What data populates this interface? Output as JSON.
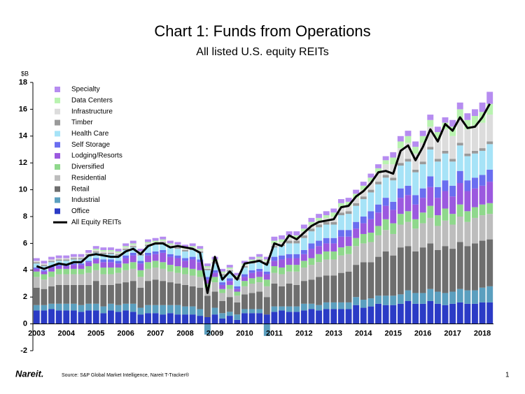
{
  "chart_data": {
    "type": "bar",
    "stacked": true,
    "title": "Chart 1: Funds from Operations",
    "subtitle": "All listed U.S. equity REITs",
    "y_label": "$B",
    "source": "Source: S&P Global Market Intelligence, Nareit T-Tracker®",
    "logo": "Nareit.",
    "page_number": "1",
    "legend": "upper left",
    "grid": false,
    "ylim": [
      -2,
      18
    ],
    "yticks": [
      -2,
      0,
      2,
      4,
      6,
      8,
      10,
      12,
      14,
      16,
      18
    ],
    "categories": [
      "2003",
      null,
      null,
      null,
      "2004",
      null,
      null,
      null,
      "2005",
      null,
      null,
      null,
      "2006",
      null,
      null,
      null,
      "2007",
      null,
      null,
      null,
      "2008",
      null,
      null,
      null,
      "2009",
      null,
      null,
      null,
      "2010",
      null,
      null,
      null,
      "2011",
      null,
      null,
      null,
      "2012",
      null,
      null,
      null,
      "2013",
      null,
      null,
      null,
      "2014",
      null,
      null,
      null,
      "2015",
      null,
      null,
      null,
      "2016",
      null,
      null,
      null,
      "2017",
      null,
      null,
      null,
      "2018",
      null
    ],
    "series": [
      {
        "name": "Office",
        "color": "#2b3bc6",
        "values": [
          1.0,
          1.0,
          1.1,
          1.0,
          1.0,
          1.0,
          0.9,
          1.0,
          1.0,
          0.8,
          1.0,
          0.9,
          1.0,
          0.9,
          0.7,
          0.8,
          0.8,
          0.7,
          0.8,
          0.7,
          0.7,
          0.7,
          0.6,
          0.5,
          0.7,
          0.4,
          0.6,
          0.3,
          0.8,
          0.8,
          0.8,
          0.7,
          0.9,
          1.0,
          0.9,
          0.9,
          1.0,
          1.1,
          1.0,
          1.1,
          1.1,
          1.1,
          1.1,
          1.4,
          1.2,
          1.3,
          1.5,
          1.4,
          1.4,
          1.5,
          1.7,
          1.5,
          1.5,
          1.7,
          1.5,
          1.4,
          1.5,
          1.6,
          1.5,
          1.5,
          1.6,
          1.6
        ]
      },
      {
        "name": "Industrial",
        "color": "#5b9fbf",
        "values": [
          0.4,
          0.4,
          0.4,
          0.5,
          0.5,
          0.5,
          0.5,
          0.5,
          0.5,
          0.5,
          0.5,
          0.5,
          0.5,
          0.6,
          0.5,
          0.6,
          0.6,
          0.7,
          0.6,
          0.7,
          0.6,
          0.6,
          0.5,
          -0.8,
          0.5,
          0.4,
          0.3,
          0.4,
          0.3,
          0.3,
          0.3,
          -0.9,
          0.4,
          0.3,
          0.4,
          0.4,
          0.5,
          0.4,
          0.4,
          0.5,
          0.5,
          0.5,
          0.5,
          0.6,
          0.6,
          0.6,
          0.6,
          0.7,
          0.7,
          0.7,
          0.8,
          0.8,
          0.8,
          0.9,
          0.9,
          0.9,
          0.9,
          1.0,
          1.0,
          1.0,
          1.1,
          1.2
        ]
      },
      {
        "name": "Retail",
        "color": "#6e6e6e",
        "values": [
          1.3,
          1.2,
          1.3,
          1.4,
          1.4,
          1.4,
          1.5,
          1.4,
          1.7,
          1.6,
          1.4,
          1.6,
          1.6,
          1.7,
          1.5,
          1.8,
          1.9,
          1.8,
          1.7,
          1.6,
          1.6,
          1.5,
          1.6,
          1.6,
          1.2,
          0.9,
          1.1,
          0.9,
          1.1,
          1.2,
          1.3,
          1.3,
          1.7,
          1.5,
          1.7,
          1.6,
          1.7,
          1.8,
          2.1,
          2.0,
          2.0,
          2.2,
          2.3,
          2.4,
          2.8,
          2.7,
          2.9,
          3.3,
          3.0,
          3.5,
          3.3,
          3.1,
          3.4,
          3.4,
          3.1,
          3.5,
          3.2,
          3.5,
          3.3,
          3.5,
          3.5,
          3.5
        ]
      },
      {
        "name": "Residential",
        "color": "#bdbdbd",
        "values": [
          0.8,
          0.7,
          0.7,
          0.8,
          0.8,
          0.8,
          0.8,
          0.9,
          0.8,
          0.8,
          0.8,
          0.8,
          0.9,
          0.9,
          0.8,
          0.9,
          0.9,
          0.9,
          0.8,
          0.8,
          0.8,
          0.8,
          0.8,
          0.6,
          0.7,
          0.6,
          0.6,
          0.5,
          0.6,
          0.7,
          0.7,
          0.8,
          0.8,
          0.9,
          0.9,
          1.0,
          1.0,
          1.1,
          1.1,
          1.2,
          1.2,
          1.3,
          1.3,
          1.4,
          1.4,
          1.5,
          1.6,
          1.6,
          1.6,
          1.7,
          1.8,
          1.7,
          1.8,
          1.9,
          1.8,
          1.9,
          1.8,
          1.9,
          1.8,
          1.9,
          1.9,
          1.9
        ]
      },
      {
        "name": "Diversified",
        "color": "#8fd88c",
        "values": [
          0.4,
          0.4,
          0.4,
          0.4,
          0.4,
          0.4,
          0.4,
          0.5,
          0.5,
          0.5,
          0.5,
          0.4,
          0.5,
          0.5,
          0.5,
          0.5,
          0.5,
          0.5,
          0.5,
          0.5,
          0.5,
          0.5,
          0.5,
          0.3,
          0.4,
          0.3,
          0.3,
          0.3,
          0.4,
          0.4,
          0.4,
          0.5,
          0.5,
          0.5,
          0.5,
          0.5,
          0.5,
          0.5,
          0.6,
          0.6,
          0.6,
          0.6,
          0.6,
          0.6,
          0.7,
          0.7,
          0.7,
          0.8,
          0.8,
          0.8,
          0.8,
          0.7,
          0.8,
          0.9,
          0.8,
          0.9,
          0.8,
          0.9,
          0.8,
          0.8,
          0.8,
          0.8
        ]
      },
      {
        "name": "Lodging/Resorts",
        "color": "#9b59df",
        "values": [
          0.2,
          0.2,
          0.3,
          0.2,
          0.2,
          0.3,
          0.3,
          0.3,
          0.3,
          0.4,
          0.4,
          0.3,
          0.4,
          0.5,
          0.5,
          0.5,
          0.5,
          0.7,
          0.6,
          0.6,
          0.5,
          0.7,
          0.6,
          0.3,
          0.3,
          0.3,
          0.3,
          0.2,
          0.3,
          0.4,
          0.4,
          0.4,
          0.4,
          0.6,
          0.5,
          0.5,
          0.5,
          0.7,
          0.6,
          0.6,
          0.6,
          0.8,
          0.7,
          0.7,
          0.8,
          1.0,
          1.0,
          1.0,
          1.0,
          1.2,
          1.2,
          1.1,
          1.1,
          1.4,
          1.3,
          1.3,
          1.3,
          1.6,
          1.5,
          1.4,
          1.4,
          1.6
        ]
      },
      {
        "name": "Self Storage",
        "color": "#6a6ef0",
        "values": [
          0.1,
          0.1,
          0.1,
          0.1,
          0.1,
          0.1,
          0.1,
          0.1,
          0.1,
          0.2,
          0.2,
          0.2,
          0.2,
          0.2,
          0.2,
          0.2,
          0.2,
          0.2,
          0.2,
          0.2,
          0.2,
          0.2,
          0.2,
          0.2,
          0.2,
          0.2,
          0.2,
          0.2,
          0.2,
          0.2,
          0.2,
          0.2,
          0.3,
          0.3,
          0.3,
          0.3,
          0.3,
          0.4,
          0.4,
          0.4,
          0.4,
          0.5,
          0.5,
          0.5,
          0.5,
          0.6,
          0.6,
          0.6,
          0.6,
          0.7,
          0.7,
          0.7,
          0.7,
          0.8,
          0.8,
          0.8,
          0.8,
          0.9,
          0.8,
          0.8,
          0.8,
          0.9
        ]
      },
      {
        "name": "Health Care",
        "color": "#a6e3f7",
        "values": [
          0.3,
          0.3,
          0.3,
          0.3,
          0.3,
          0.3,
          0.3,
          0.4,
          0.4,
          0.4,
          0.4,
          0.4,
          0.4,
          0.4,
          0.4,
          0.5,
          0.5,
          0.5,
          0.5,
          0.5,
          0.5,
          0.5,
          0.5,
          0.5,
          0.5,
          0.5,
          0.5,
          0.5,
          0.5,
          0.5,
          0.6,
          0.6,
          0.7,
          0.7,
          0.8,
          0.8,
          0.9,
          0.9,
          1.0,
          1.0,
          1.0,
          1.1,
          1.2,
          1.2,
          1.3,
          1.4,
          1.5,
          1.5,
          1.6,
          1.7,
          1.8,
          1.7,
          1.8,
          2.0,
          1.9,
          2.0,
          1.8,
          1.9,
          1.8,
          1.8,
          1.8,
          1.9
        ]
      },
      {
        "name": "Timber",
        "color": "#9a9a9a",
        "values": [
          0.1,
          0.1,
          0.1,
          0.1,
          0.1,
          0.1,
          0.1,
          0.1,
          0.1,
          0.1,
          0.1,
          0.1,
          0.1,
          0.1,
          0.1,
          0.1,
          0.1,
          0.1,
          0.1,
          0.1,
          0.1,
          0.1,
          0.1,
          0.1,
          0.1,
          0.1,
          0.1,
          0.1,
          0.1,
          0.1,
          0.1,
          0.1,
          0.1,
          0.1,
          0.2,
          0.2,
          0.2,
          0.2,
          0.2,
          0.2,
          0.2,
          0.2,
          0.2,
          0.2,
          0.2,
          0.2,
          0.2,
          0.2,
          0.2,
          0.2,
          0.2,
          0.2,
          0.2,
          0.2,
          0.2,
          0.2,
          0.2,
          0.2,
          0.2,
          0.2,
          0.2,
          0.2
        ]
      },
      {
        "name": "Infrastructure",
        "color": "#dcdcdc",
        "values": [
          0.1,
          0.1,
          0.1,
          0.1,
          0.1,
          0.1,
          0.1,
          0.1,
          0.1,
          0.1,
          0.1,
          0.1,
          0.1,
          0.1,
          0.1,
          0.1,
          0.1,
          0.1,
          0.1,
          0.1,
          0.1,
          0.1,
          0.1,
          0.1,
          0.1,
          0.1,
          0.1,
          0.1,
          0.1,
          0.1,
          0.1,
          0.1,
          0.2,
          0.2,
          0.2,
          0.2,
          0.3,
          0.3,
          0.3,
          0.3,
          0.4,
          0.4,
          0.4,
          0.4,
          0.5,
          0.6,
          0.7,
          0.8,
          1.0,
          1.1,
          1.2,
          1.2,
          1.4,
          1.5,
          1.5,
          1.6,
          1.7,
          1.8,
          1.8,
          1.9,
          1.9,
          2.0
        ]
      },
      {
        "name": "Data Centers",
        "color": "#b9f3b0",
        "values": [
          0,
          0,
          0,
          0,
          0,
          0,
          0,
          0,
          0.1,
          0.1,
          0.1,
          0.1,
          0.1,
          0.1,
          0.1,
          0.1,
          0.1,
          0.1,
          0.1,
          0.1,
          0.1,
          0.1,
          0.1,
          0.1,
          0.1,
          0.1,
          0.1,
          0.1,
          0.1,
          0.1,
          0.1,
          0.1,
          0.2,
          0.2,
          0.2,
          0.2,
          0.2,
          0.2,
          0.2,
          0.2,
          0.3,
          0.3,
          0.3,
          0.3,
          0.3,
          0.3,
          0.3,
          0.3,
          0.5,
          0.5,
          0.5,
          0.5,
          0.5,
          0.5,
          0.5,
          0.5,
          0.7,
          0.7,
          0.7,
          0.7,
          0.8,
          0.8
        ]
      },
      {
        "name": "Specialty",
        "color": "#b68cf0",
        "values": [
          0.2,
          0.2,
          0.2,
          0.2,
          0.2,
          0.2,
          0.2,
          0.2,
          0.2,
          0.2,
          0.2,
          0.2,
          0.2,
          0.2,
          0.2,
          0.2,
          0.2,
          0.2,
          0.2,
          0.2,
          0.2,
          0.2,
          0.2,
          0.2,
          0.2,
          0.2,
          0.2,
          0.2,
          0.2,
          0.2,
          0.2,
          0.2,
          0.3,
          0.3,
          0.3,
          0.3,
          0.3,
          0.3,
          0.3,
          0.3,
          0.3,
          0.3,
          0.3,
          0.3,
          0.3,
          0.3,
          0.3,
          0.3,
          0.4,
          0.4,
          0.4,
          0.4,
          0.4,
          0.4,
          0.4,
          0.4,
          0.5,
          0.5,
          0.5,
          0.5,
          0.7,
          0.9
        ]
      }
    ],
    "line": {
      "name": "All Equity REITs",
      "color": "#000000",
      "values": [
        4.3,
        4.1,
        4.3,
        4.5,
        4.4,
        4.6,
        4.6,
        5.1,
        5.2,
        5.1,
        5.0,
        5.0,
        5.4,
        5.6,
        5.2,
        5.8,
        6.0,
        6.0,
        5.7,
        5.8,
        5.7,
        5.6,
        5.3,
        2.3,
        5.0,
        3.3,
        3.9,
        3.3,
        4.5,
        4.6,
        4.7,
        4.4,
        6.0,
        5.8,
        6.6,
        6.3,
        6.8,
        7.3,
        7.6,
        7.7,
        7.8,
        8.7,
        8.8,
        9.5,
        9.9,
        10.5,
        11.3,
        11.4,
        11.2,
        12.9,
        13.3,
        12.2,
        13.2,
        14.5,
        13.6,
        14.9,
        14.4,
        15.4,
        14.6,
        14.7,
        15.4,
        16.4
      ]
    }
  }
}
